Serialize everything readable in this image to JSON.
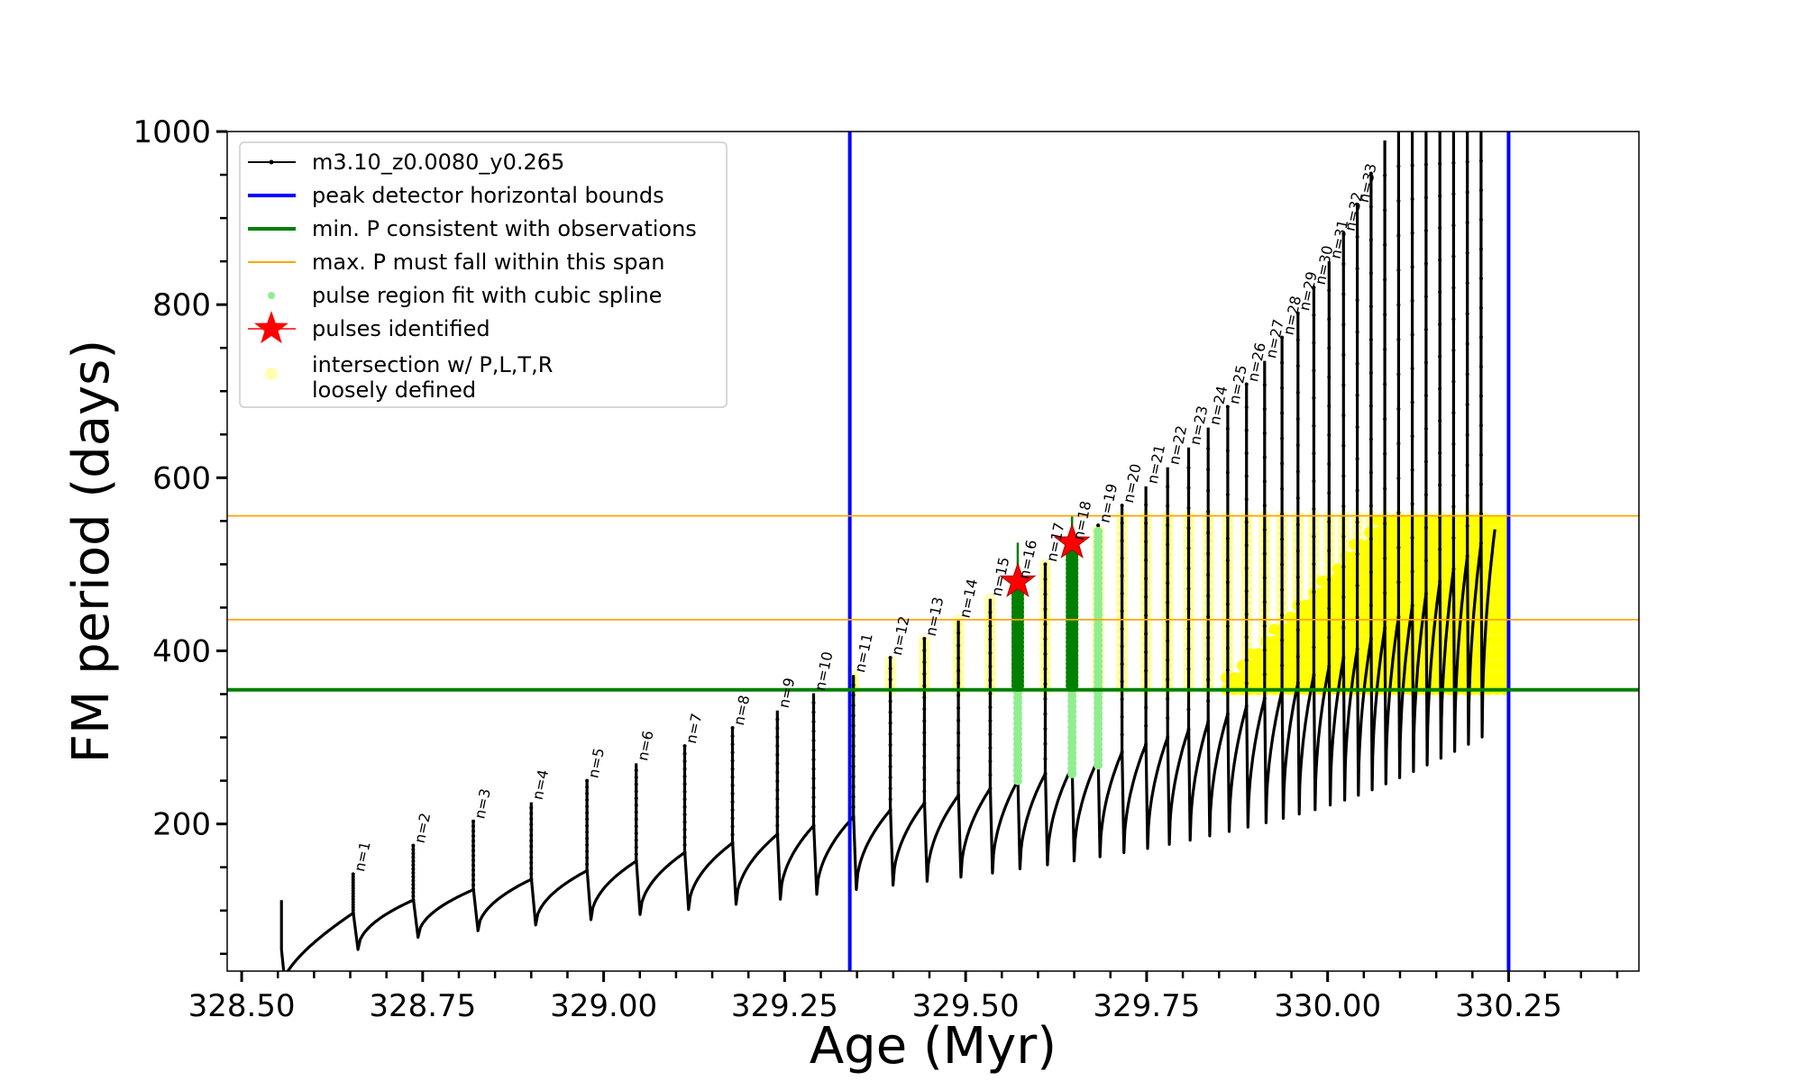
{
  "chart_data": {
    "type": "scatter",
    "title": "",
    "xlabel": "Age (Myr)",
    "ylabel": "FM period (days)",
    "xlim": [
      328.48,
      330.43
    ],
    "ylim": [
      30,
      1000
    ],
    "x_ticks": [
      328.5,
      328.75,
      329.0,
      329.25,
      329.5,
      329.75,
      330.0,
      330.25
    ],
    "x_tick_labels": [
      "328.50",
      "328.75",
      "329.00",
      "329.25",
      "329.50",
      "329.75",
      "330.00",
      "330.25"
    ],
    "y_ticks": [
      200,
      400,
      600,
      800,
      1000
    ],
    "y_tick_labels": [
      "200",
      "400",
      "600",
      "800",
      "1000"
    ],
    "grid": false,
    "legend_placement": "top-left",
    "series": [
      {
        "name": "m3.10_z0.0080_y0.265",
        "kind": "track",
        "color": "#000000"
      },
      {
        "name": "peak detector horizontal bounds",
        "kind": "vline",
        "color": "#0000ff",
        "x": [
          329.34,
          330.25
        ]
      },
      {
        "name": "min. P consistent with observations",
        "kind": "hline",
        "color": "#008000",
        "y": [
          355
        ]
      },
      {
        "name": "max. P must fall within this span",
        "kind": "hline",
        "color": "#ffa500",
        "y": [
          436,
          556
        ]
      },
      {
        "name": "pulse region fit with cubic spline",
        "kind": "points",
        "color": "#90ee90"
      },
      {
        "name": "pulses identified",
        "kind": "star",
        "color": "#ff0000",
        "points": [
          [
            329.572,
            480
          ],
          [
            329.647,
            525
          ]
        ]
      },
      {
        "name": "intersection w/ P,L,T,R\nloosely defined",
        "kind": "region",
        "color": "#ffff00"
      }
    ],
    "pulses": [
      {
        "label": "n=1",
        "x": 328.654,
        "y": 142,
        "start": 97
      },
      {
        "label": "n=2",
        "x": 328.737,
        "y": 175,
        "start": 112
      },
      {
        "label": "n=3",
        "x": 328.82,
        "y": 203,
        "start": 124
      },
      {
        "label": "n=4",
        "x": 328.9,
        "y": 225,
        "start": 136
      },
      {
        "label": "n=5",
        "x": 328.977,
        "y": 250,
        "start": 146
      },
      {
        "label": "n=6",
        "x": 329.045,
        "y": 270,
        "start": 157
      },
      {
        "label": "n=7",
        "x": 329.112,
        "y": 290,
        "start": 167
      },
      {
        "label": "n=8",
        "x": 329.178,
        "y": 311,
        "start": 178
      },
      {
        "label": "n=9",
        "x": 329.24,
        "y": 331,
        "start": 188
      },
      {
        "label": "n=10",
        "x": 329.29,
        "y": 351,
        "start": 198
      },
      {
        "label": "n=11",
        "x": 329.345,
        "y": 372,
        "start": 208
      },
      {
        "label": "n=12",
        "x": 329.396,
        "y": 392,
        "start": 216
      },
      {
        "label": "n=13",
        "x": 329.443,
        "y": 414,
        "start": 224
      },
      {
        "label": "n=14",
        "x": 329.49,
        "y": 435,
        "start": 233
      },
      {
        "label": "n=15",
        "x": 329.534,
        "y": 460,
        "start": 241
      },
      {
        "label": "n=16",
        "x": 329.572,
        "y": 480,
        "start": 250
      },
      {
        "label": "n=17",
        "x": 329.61,
        "y": 500,
        "start": 258
      },
      {
        "label": "n=18",
        "x": 329.647,
        "y": 525,
        "start": 266
      },
      {
        "label": "n=19",
        "x": 329.683,
        "y": 545,
        "start": 275
      },
      {
        "label": "n=20",
        "x": 329.716,
        "y": 568,
        "start": 283
      },
      {
        "label": "n=21",
        "x": 329.749,
        "y": 590,
        "start": 292
      },
      {
        "label": "n=22",
        "x": 329.779,
        "y": 612,
        "start": 300
      },
      {
        "label": "n=23",
        "x": 329.808,
        "y": 635,
        "start": 309
      },
      {
        "label": "n=24",
        "x": 329.835,
        "y": 658,
        "start": 318
      },
      {
        "label": "n=25",
        "x": 329.862,
        "y": 682,
        "start": 327
      },
      {
        "label": "n=26",
        "x": 329.888,
        "y": 708,
        "start": 336
      },
      {
        "label": "n=27",
        "x": 329.913,
        "y": 735,
        "start": 345
      },
      {
        "label": "n=28",
        "x": 329.937,
        "y": 762,
        "start": 354
      },
      {
        "label": "n=29",
        "x": 329.959,
        "y": 790,
        "start": 363
      },
      {
        "label": "n=30",
        "x": 329.981,
        "y": 820,
        "start": 372
      },
      {
        "label": "n=31",
        "x": 330.002,
        "y": 850,
        "start": 382
      },
      {
        "label": "n=32",
        "x": 330.022,
        "y": 882,
        "start": 392
      },
      {
        "label": "n=33",
        "x": 330.041,
        "y": 915,
        "start": 402
      }
    ]
  }
}
